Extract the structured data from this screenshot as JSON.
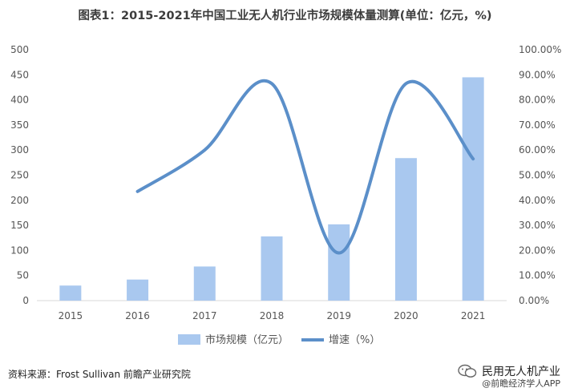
{
  "title": "图表1：2015-2021年中国工业无人机行业市场规模体量测算(单位：亿元，%)",
  "source": "资料来源：Frost Sullivan 前瞻产业研究院",
  "brand": {
    "name": "民用无人机产业",
    "sub": "@前瞻经济学人APP"
  },
  "colors": {
    "bar": "#a9c8ef",
    "line": "#5b8fc9",
    "axis_text": "#555555",
    "grid": "#d9d9d9"
  },
  "chart_data": {
    "type": "bar+line",
    "title": "图表1：2015-2021年中国工业无人机行业市场规模体量测算(单位：亿元，%)",
    "categories": [
      "2015",
      "2016",
      "2017",
      "2018",
      "2019",
      "2020",
      "2021"
    ],
    "series": [
      {
        "name": "市场规模（亿元）",
        "type": "bar",
        "axis": "left",
        "values": [
          30,
          42,
          68,
          128,
          152,
          284,
          445
        ]
      },
      {
        "name": "增速（%）",
        "type": "line",
        "axis": "right",
        "values": [
          null,
          43.5,
          60.0,
          86.5,
          19.0,
          86.5,
          56.5
        ]
      }
    ],
    "ylim_left": [
      0,
      500
    ],
    "yticks_left": [
      "0",
      "50",
      "100",
      "150",
      "200",
      "250",
      "300",
      "350",
      "400",
      "450",
      "500"
    ],
    "ylim_right": [
      0,
      100
    ],
    "yticks_right": [
      "0.00%",
      "10.00%",
      "20.00%",
      "30.00%",
      "40.00%",
      "50.00%",
      "60.00%",
      "70.00%",
      "80.00%",
      "90.00%",
      "100.00%"
    ],
    "legend_position": "bottom",
    "grid": false
  }
}
